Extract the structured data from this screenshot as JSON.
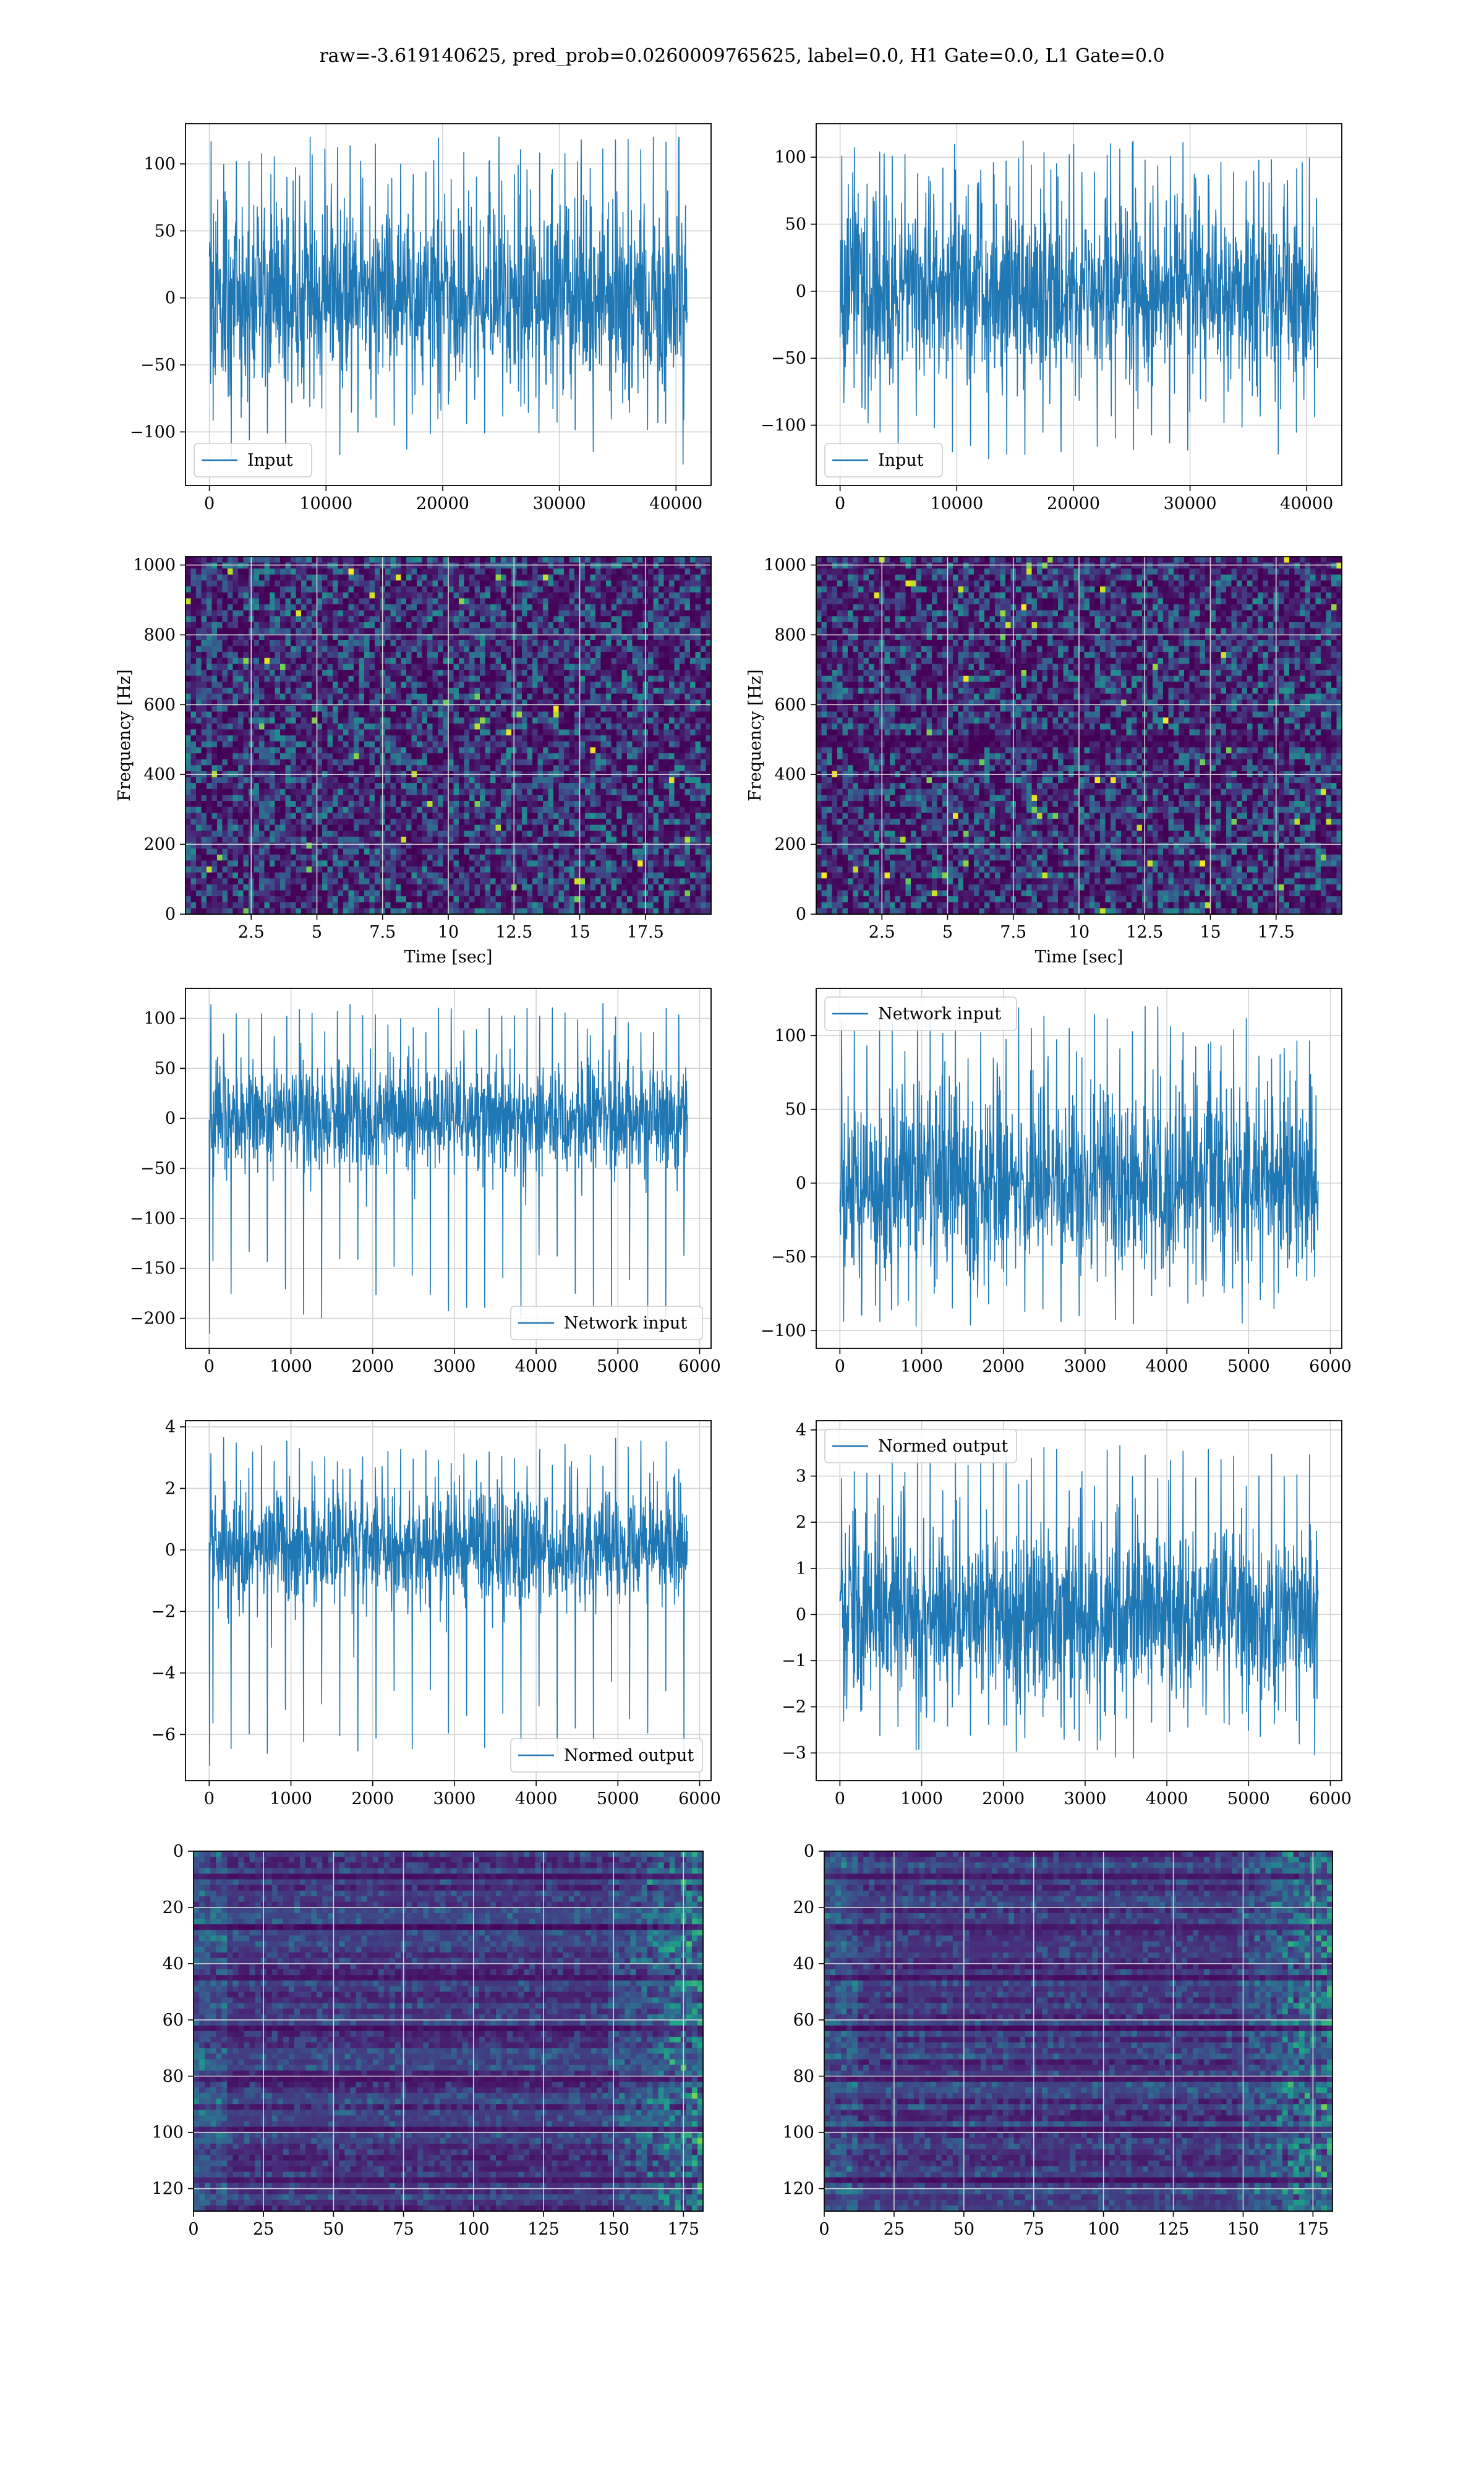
{
  "figure": {
    "title": "raw=-3.619140625, pred_prob=0.0260009765625, label=0.0, H1 Gate=0.0, L1 Gate=0.0"
  },
  "colors": {
    "line": "#1f77b4",
    "grid": "#d3d3d3",
    "viridis_low": "#440154",
    "viridis_high": "#fde725"
  },
  "chart_data": [
    {
      "id": "h1-input",
      "type": "line",
      "detector": "H1",
      "series": [
        {
          "name": "Input"
        }
      ],
      "x_range": [
        0,
        40960
      ],
      "y_range": [
        -125,
        120
      ],
      "noise_amplitude": 35,
      "xlim": [
        -2048,
        43008
      ],
      "ylim": [
        -140,
        130
      ],
      "xticks": [
        0,
        10000,
        20000,
        30000,
        40000
      ],
      "yticks": [
        -100,
        -50,
        0,
        50,
        100
      ],
      "legend_position": "lower-left",
      "grid": true
    },
    {
      "id": "l1-input",
      "type": "line",
      "detector": "L1",
      "series": [
        {
          "name": "Input"
        }
      ],
      "x_range": [
        0,
        40960
      ],
      "y_range": [
        -133,
        112
      ],
      "noise_amplitude": 35,
      "xlim": [
        -2048,
        43008
      ],
      "ylim": [
        -145,
        125
      ],
      "xticks": [
        0,
        10000,
        20000,
        30000,
        40000
      ],
      "yticks": [
        -100,
        -50,
        0,
        50,
        100
      ],
      "legend_position": "lower-left",
      "grid": true
    },
    {
      "id": "h1-spectrogram",
      "type": "heatmap",
      "detector": "H1",
      "colormap": "viridis",
      "xlabel": "Time [sec]",
      "ylabel": "Frequency [Hz]",
      "xlim": [
        0,
        20
      ],
      "ylim": [
        0,
        1024
      ],
      "xticks": [
        2.5,
        5.0,
        7.5,
        10.0,
        12.5,
        15.0,
        17.5
      ],
      "yticks": [
        0,
        200,
        400,
        600,
        800,
        1000
      ],
      "grid": true
    },
    {
      "id": "l1-spectrogram",
      "type": "heatmap",
      "detector": "L1",
      "colormap": "viridis",
      "xlabel": "Time [sec]",
      "ylabel": "Frequency [Hz]",
      "xlim": [
        0,
        20
      ],
      "ylim": [
        0,
        1024
      ],
      "xticks": [
        2.5,
        5.0,
        7.5,
        10.0,
        12.5,
        15.0,
        17.5
      ],
      "yticks": [
        0,
        200,
        400,
        600,
        800,
        1000
      ],
      "grid": true
    },
    {
      "id": "h1-network-input",
      "type": "line",
      "detector": "H1",
      "series": [
        {
          "name": "Network input"
        }
      ],
      "x_range": [
        0,
        5850
      ],
      "y_range": [
        -215,
        115
      ],
      "noise_amplitude": 28,
      "initial_spike": -215,
      "xlim": [
        -290,
        6140
      ],
      "ylim": [
        -230,
        130
      ],
      "xticks": [
        0,
        1000,
        2000,
        3000,
        4000,
        5000,
        6000
      ],
      "yticks": [
        -200,
        -150,
        -100,
        -50,
        0,
        50,
        100
      ],
      "legend_position": "lower-right",
      "grid": true
    },
    {
      "id": "l1-network-input",
      "type": "line",
      "detector": "L1",
      "series": [
        {
          "name": "Network input"
        }
      ],
      "x_range": [
        0,
        5850
      ],
      "y_range": [
        -103,
        120
      ],
      "noise_amplitude": 30,
      "xlim": [
        -290,
        6140
      ],
      "ylim": [
        -112,
        132
      ],
      "xticks": [
        0,
        1000,
        2000,
        3000,
        4000,
        5000,
        6000
      ],
      "yticks": [
        -100,
        -50,
        0,
        50,
        100
      ],
      "legend_position": "upper-left",
      "grid": true
    },
    {
      "id": "h1-normed-output",
      "type": "line",
      "detector": "H1",
      "series": [
        {
          "name": "Normed output"
        }
      ],
      "x_range": [
        0,
        5850
      ],
      "y_range": [
        -7.0,
        3.7
      ],
      "noise_amplitude": 0.95,
      "initial_spike": -7.0,
      "xlim": [
        -290,
        6140
      ],
      "ylim": [
        -7.5,
        4.2
      ],
      "xticks": [
        0,
        1000,
        2000,
        3000,
        4000,
        5000,
        6000
      ],
      "yticks": [
        -6,
        -4,
        -2,
        0,
        2,
        4
      ],
      "legend_position": "lower-right",
      "grid": true
    },
    {
      "id": "l1-normed-output",
      "type": "line",
      "detector": "L1",
      "series": [
        {
          "name": "Normed output"
        }
      ],
      "x_range": [
        0,
        5850
      ],
      "y_range": [
        -3.3,
        3.8
      ],
      "noise_amplitude": 0.95,
      "xlim": [
        -290,
        6140
      ],
      "ylim": [
        -3.6,
        4.2
      ],
      "xticks": [
        0,
        1000,
        2000,
        3000,
        4000,
        5000,
        6000
      ],
      "yticks": [
        -3,
        -2,
        -1,
        0,
        1,
        2,
        3,
        4
      ],
      "legend_position": "upper-left",
      "grid": true
    },
    {
      "id": "h1-feature-map",
      "type": "heatmap",
      "detector": "H1",
      "colormap": "viridis",
      "rows": 128,
      "cols": 182,
      "xlim": [
        0,
        182
      ],
      "ylim": [
        128,
        0
      ],
      "xticks": [
        0,
        25,
        50,
        75,
        100,
        125,
        150,
        175
      ],
      "yticks": [
        0,
        20,
        40,
        60,
        80,
        100,
        120
      ],
      "grid": true
    },
    {
      "id": "l1-feature-map",
      "type": "heatmap",
      "detector": "L1",
      "colormap": "viridis",
      "rows": 128,
      "cols": 182,
      "xlim": [
        0,
        182
      ],
      "ylim": [
        128,
        0
      ],
      "xticks": [
        0,
        25,
        50,
        75,
        100,
        125,
        150,
        175
      ],
      "yticks": [
        0,
        20,
        40,
        60,
        80,
        100,
        120
      ],
      "grid": true
    }
  ]
}
